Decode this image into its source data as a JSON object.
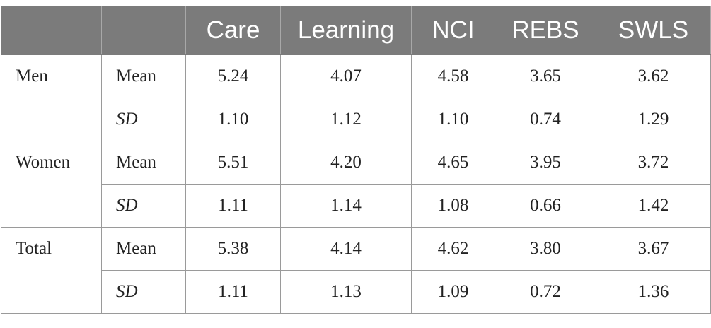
{
  "header": [
    "",
    "",
    "Care",
    "Learning",
    "NCI",
    "REBS",
    "SWLS"
  ],
  "groups": [
    {
      "label": "Men",
      "rows": [
        {
          "stat": "Mean",
          "italic": false,
          "values": [
            "5.24",
            "4.07",
            "4.58",
            "3.65",
            "3.62"
          ]
        },
        {
          "stat": "SD",
          "italic": true,
          "values": [
            "1.10",
            "1.12",
            "1.10",
            "0.74",
            "1.29"
          ]
        }
      ]
    },
    {
      "label": "Women",
      "rows": [
        {
          "stat": "Mean",
          "italic": false,
          "values": [
            "5.51",
            "4.20",
            "4.65",
            "3.95",
            "3.72"
          ]
        },
        {
          "stat": "SD",
          "italic": true,
          "values": [
            "1.11",
            "1.14",
            "1.08",
            "0.66",
            "1.42"
          ]
        }
      ]
    },
    {
      "label": "Total",
      "rows": [
        {
          "stat": "Mean",
          "italic": false,
          "values": [
            "5.38",
            "4.14",
            "4.62",
            "3.80",
            "3.67"
          ]
        },
        {
          "stat": "SD",
          "italic": true,
          "values": [
            "1.11",
            "1.13",
            "1.09",
            "0.72",
            "1.36"
          ]
        }
      ]
    }
  ]
}
